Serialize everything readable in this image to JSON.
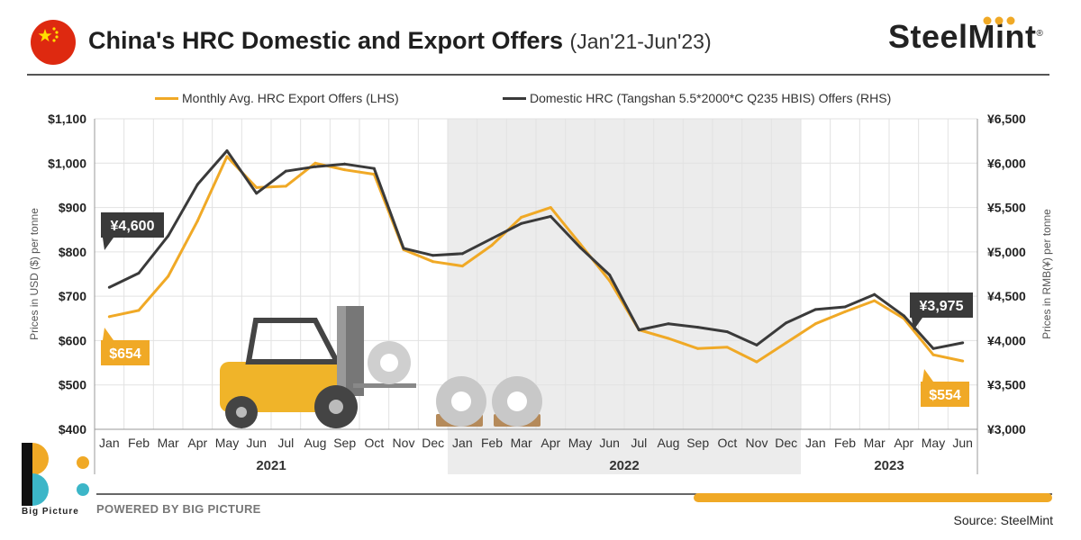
{
  "header": {
    "title": "China's HRC Domestic and Export Offers",
    "subtitle": "(Jan'21-Jun'23)",
    "brand": "SteelMint",
    "brand_mark": "®"
  },
  "footer": {
    "powered_by": "POWERED BY BIG PICTURE",
    "logo_text": "Big Picture",
    "source": "Source: SteelMint"
  },
  "colors": {
    "export": "#f0a926",
    "domestic": "#3a3a3a",
    "shade": "#ececec",
    "grid": "#e2e2e2"
  },
  "chart_data": {
    "type": "line",
    "x": [
      "Jan",
      "Feb",
      "Mar",
      "Apr",
      "May",
      "Jun",
      "Jul",
      "Aug",
      "Sep",
      "Oct",
      "Nov",
      "Dec",
      "Jan",
      "Feb",
      "Mar",
      "Apr",
      "May",
      "Jun",
      "Jul",
      "Aug",
      "Sep",
      "Oct",
      "Nov",
      "Dec",
      "Jan",
      "Feb",
      "Mar",
      "Apr",
      "May",
      "Jun"
    ],
    "years": [
      {
        "label": "2021",
        "start": 0,
        "end": 11
      },
      {
        "label": "2022",
        "start": 12,
        "end": 23
      },
      {
        "label": "2023",
        "start": 24,
        "end": 29
      }
    ],
    "ylabel": "Prices in USD ($) per tonne",
    "ylabel_right": "Prices in RMB(¥) per tonne",
    "y_ticks": [
      "$400",
      "$500",
      "$600",
      "$700",
      "$800",
      "$900",
      "$1,000",
      "$1,100"
    ],
    "y_right_ticks": [
      "¥3,000",
      "¥3,500",
      "¥4,000",
      "¥4,500",
      "¥5,000",
      "¥5,500",
      "¥6,000",
      "¥6,500"
    ],
    "ylim": [
      400,
      1100
    ],
    "ylim_right": [
      3000,
      6500
    ],
    "series": [
      {
        "name": "Monthly Avg. HRC Export Offers (LHS)",
        "axis": "left",
        "values": [
          654,
          668,
          745,
          870,
          1015,
          945,
          948,
          1000,
          985,
          975,
          805,
          778,
          768,
          815,
          878,
          900,
          818,
          735,
          624,
          605,
          582,
          585,
          552,
          595,
          638,
          665,
          690,
          650,
          568,
          554
        ]
      },
      {
        "name": "Domestic HRC (Tangshan 5.5*2000*C Q235 HBIS) Offers (RHS)",
        "axis": "right",
        "values": [
          4600,
          4760,
          5180,
          5760,
          6140,
          5660,
          5910,
          5960,
          5990,
          5940,
          5040,
          4960,
          4980,
          5150,
          5320,
          5400,
          5050,
          4740,
          4120,
          4190,
          4150,
          4100,
          3950,
          4200,
          4350,
          4380,
          4520,
          4280,
          3910,
          3975
        ]
      }
    ],
    "annotations": [
      {
        "text": "¥4,600",
        "series": 1,
        "index": 0
      },
      {
        "text": "$654",
        "series": 0,
        "index": 0
      },
      {
        "text": "¥3,975",
        "series": 1,
        "index": 29
      },
      {
        "text": "$554",
        "series": 0,
        "index": 29
      }
    ],
    "grid": true,
    "legend_position": "top"
  }
}
